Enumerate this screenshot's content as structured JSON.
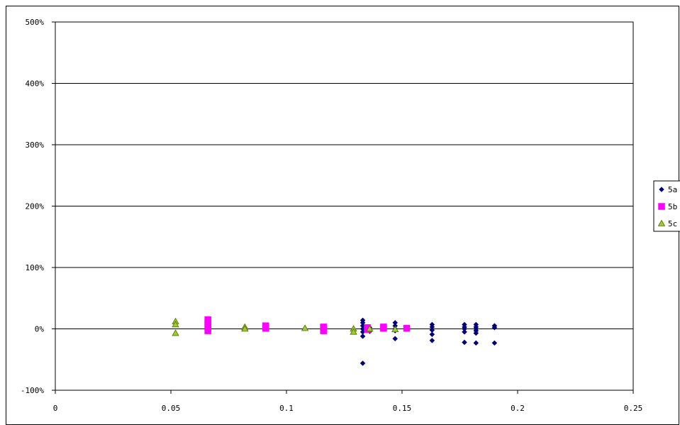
{
  "chart_data": {
    "type": "scatter",
    "title": "",
    "xlabel": "",
    "ylabel": "",
    "xlim": [
      0,
      0.25
    ],
    "ylim": [
      -100,
      500
    ],
    "x_ticks": [
      "0",
      "0.05",
      "0.1",
      "0.15",
      "0.2",
      "0.25"
    ],
    "y_ticks": [
      "-100%",
      "0%",
      "100%",
      "200%",
      "300%",
      "400%",
      "500%"
    ],
    "y_tick_values": [
      -100,
      0,
      100,
      200,
      300,
      400,
      500
    ],
    "x_tick_values": [
      0,
      0.05,
      0.1,
      0.15,
      0.2,
      0.25
    ],
    "grid": "horizontal",
    "legend_position": "right",
    "series": [
      {
        "name": "5a",
        "marker": "diamond",
        "color": "#000080",
        "points": [
          [
            0.133,
            14
          ],
          [
            0.133,
            10
          ],
          [
            0.133,
            5
          ],
          [
            0.133,
            0
          ],
          [
            0.133,
            -5
          ],
          [
            0.133,
            -12
          ],
          [
            0.133,
            -56
          ],
          [
            0.136,
            2
          ],
          [
            0.136,
            -4
          ],
          [
            0.147,
            10
          ],
          [
            0.147,
            5
          ],
          [
            0.147,
            0
          ],
          [
            0.147,
            -3
          ],
          [
            0.147,
            -16
          ],
          [
            0.163,
            7
          ],
          [
            0.163,
            3
          ],
          [
            0.163,
            -2
          ],
          [
            0.163,
            -9
          ],
          [
            0.163,
            -19
          ],
          [
            0.177,
            7
          ],
          [
            0.177,
            3
          ],
          [
            0.177,
            0
          ],
          [
            0.177,
            -5
          ],
          [
            0.177,
            -22
          ],
          [
            0.182,
            7
          ],
          [
            0.182,
            3
          ],
          [
            0.182,
            0
          ],
          [
            0.182,
            -3
          ],
          [
            0.182,
            -7
          ],
          [
            0.182,
            -23
          ],
          [
            0.19,
            5
          ],
          [
            0.19,
            2
          ],
          [
            0.19,
            -23
          ]
        ]
      },
      {
        "name": "5b",
        "marker": "square",
        "color": "#FF00FF",
        "points": [
          [
            0.066,
            15
          ],
          [
            0.066,
            10
          ],
          [
            0.066,
            6
          ],
          [
            0.066,
            2
          ],
          [
            0.066,
            -3
          ],
          [
            0.091,
            5
          ],
          [
            0.091,
            1
          ],
          [
            0.116,
            3
          ],
          [
            0.116,
            -3
          ],
          [
            0.135,
            2
          ],
          [
            0.135,
            -1
          ],
          [
            0.142,
            3
          ],
          [
            0.142,
            1
          ],
          [
            0.152,
            1
          ]
        ]
      },
      {
        "name": "5c",
        "marker": "triangle",
        "color": "#9ACD32",
        "points": [
          [
            0.052,
            12
          ],
          [
            0.052,
            7
          ],
          [
            0.052,
            -7
          ],
          [
            0.082,
            3
          ],
          [
            0.082,
            0
          ],
          [
            0.108,
            1
          ],
          [
            0.129,
            0
          ],
          [
            0.129,
            -5
          ],
          [
            0.136,
            0
          ],
          [
            0.147,
            -1
          ]
        ]
      }
    ]
  }
}
